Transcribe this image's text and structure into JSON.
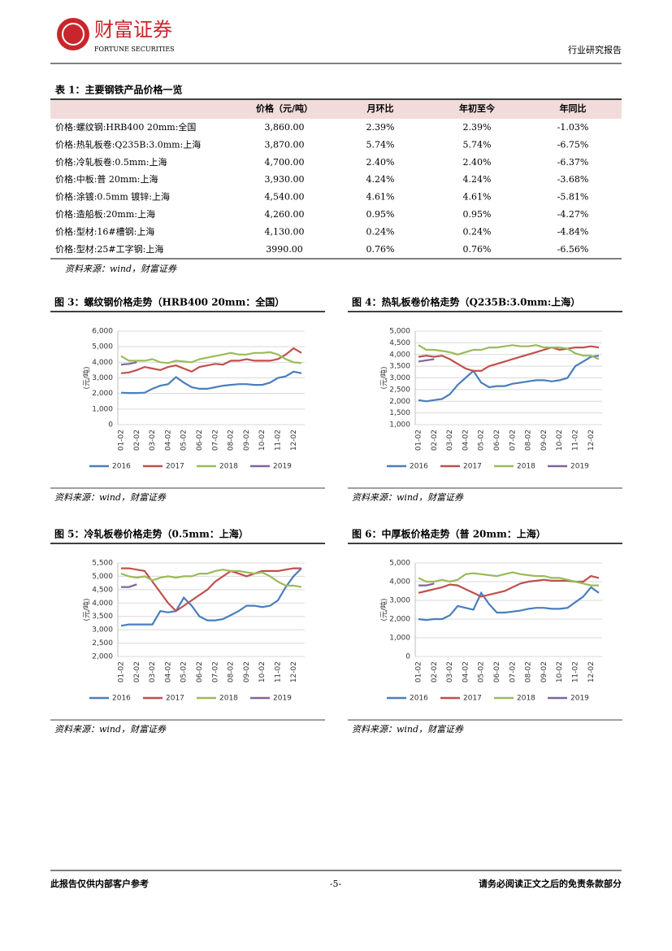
{
  "header": {
    "brand": "财富证券",
    "brand_en": "FORTUNE SECURITIES",
    "report_type": "行业研究报告"
  },
  "table": {
    "title": "表 1：主要钢铁产品价格一览",
    "header": [
      "价格（元/吨）",
      "月环比",
      "年初至今",
      "年同比"
    ],
    "rows": [
      [
        "价格:螺纹钢:HRB400 20mm:全国",
        "3,860.00",
        "2.39%",
        "2.39%",
        "-1.03%"
      ],
      [
        "价格:热轧板卷:Q235B:3.0mm:上海",
        "3,870.00",
        "5.74%",
        "5.74%",
        "-6.75%"
      ],
      [
        "价格:冷轧板卷:0.5mm:上海",
        "4,700.00",
        "2.40%",
        "2.40%",
        "-6.37%"
      ],
      [
        "价格:中板:普 20mm:上海",
        "3,930.00",
        "4.24%",
        "4.24%",
        "-3.68%"
      ],
      [
        "价格:涂镀:0.5mm 镀锌:上海",
        "4,540.00",
        "4.61%",
        "4.61%",
        "-5.81%"
      ],
      [
        "价格:造船板:20mm:上海",
        "4,260.00",
        "0.95%",
        "0.95%",
        "-4.27%"
      ],
      [
        "价格:型材:16#槽钢:上海",
        "4,130.00",
        "0.24%",
        "0.24%",
        "-4.84%"
      ],
      [
        "价格:型材:25#工字钢:上海",
        "3990.00",
        "0.76%",
        "0.76%",
        "-6.56%"
      ]
    ],
    "source": "资料来源：wind，财富证券"
  },
  "chart_data": [
    {
      "type": "line",
      "title": "图 3：螺纹钢价格走势（HRB400 20mm：全国）",
      "y_label": "(元/吨)",
      "source": "资料来源：wind，财富证券",
      "grid": true,
      "categories": [
        "01-02",
        null,
        "02-02",
        null,
        "03-02",
        null,
        "04-02",
        null,
        "05-02",
        null,
        "06-02",
        null,
        "07-02",
        null,
        "08-02",
        null,
        "09-02",
        null,
        "10-02",
        null,
        "11-02",
        null,
        "12-02",
        null
      ],
      "ylim": [
        0,
        6000
      ],
      "yticks": [
        0,
        {
          "value": 1000,
          "label": "1,000"
        },
        {
          "value": 2000,
          "label": "2,000"
        },
        {
          "value": 3000,
          "label": "3,000"
        },
        {
          "value": 4000,
          "label": "4,000"
        },
        {
          "value": 5000,
          "label": "5,000"
        },
        {
          "value": 6000,
          "label": "6,000"
        }
      ],
      "series": [
        {
          "name": "2016",
          "color": "#4a7ebb",
          "values": [
            2050,
            2030,
            2030,
            2050,
            2300,
            2500,
            2600,
            3050,
            2700,
            2400,
            2300,
            2300,
            2400,
            2500,
            2550,
            2600,
            2600,
            2550,
            2550,
            2700,
            3000,
            3100,
            3400,
            3300
          ]
        },
        {
          "name": "2017",
          "color": "#c0504d",
          "values": [
            3300,
            3350,
            3500,
            3700,
            3600,
            3500,
            3700,
            3800,
            3600,
            3400,
            3700,
            3800,
            3900,
            3850,
            4100,
            4100,
            4200,
            4100,
            4100,
            4100,
            4200,
            4500,
            4900,
            4600
          ]
        },
        {
          "name": "2018",
          "color": "#9bbb59",
          "values": [
            4400,
            4100,
            4100,
            4100,
            4200,
            4000,
            3950,
            4100,
            4050,
            4000,
            4200,
            4300,
            4400,
            4500,
            4600,
            4500,
            4500,
            4600,
            4600,
            4650,
            4500,
            4200,
            4000,
            3950
          ]
        },
        {
          "name": "2019",
          "color": "#8064a2",
          "values": [
            3850,
            3900,
            4000,
            null,
            null,
            null,
            null,
            null,
            null,
            null,
            null,
            null,
            null,
            null,
            null,
            null,
            null,
            null,
            null,
            null,
            null,
            null,
            null,
            null
          ]
        }
      ]
    },
    {
      "type": "line",
      "title": "图 4：热轧板卷价格走势（Q235B:3.0mm:上海）",
      "y_label": "(元/吨)",
      "source": "资料来源：wind，财富证券",
      "grid": true,
      "categories": [
        "01-02",
        null,
        "02-02",
        null,
        "03-02",
        null,
        "04-02",
        null,
        "05-02",
        null,
        "06-02",
        null,
        "07-02",
        null,
        "08-02",
        null,
        "09-02",
        null,
        "10-02",
        null,
        "11-02",
        null,
        "12-02",
        null
      ],
      "ylim": [
        1000,
        5000
      ],
      "yticks": [
        {
          "value": 1000,
          "label": "1,000"
        },
        {
          "value": 1500,
          "label": "1,500"
        },
        {
          "value": 2000,
          "label": "2,000"
        },
        {
          "value": 2500,
          "label": "2,500"
        },
        {
          "value": 3000,
          "label": "3,000"
        },
        {
          "value": 3500,
          "label": "3,500"
        },
        {
          "value": 4000,
          "label": "4,000"
        },
        {
          "value": 4500,
          "label": "4,500"
        },
        {
          "value": 5000,
          "label": "5,000"
        }
      ],
      "series": [
        {
          "name": "2016",
          "color": "#4a7ebb",
          "values": [
            2050,
            2000,
            2050,
            2100,
            2300,
            2700,
            3000,
            3300,
            2800,
            2600,
            2650,
            2650,
            2750,
            2800,
            2850,
            2900,
            2900,
            2850,
            2900,
            3000,
            3500,
            3700,
            3900,
            3950
          ]
        },
        {
          "name": "2017",
          "color": "#c0504d",
          "values": [
            3900,
            3950,
            3900,
            3950,
            3800,
            3600,
            3400,
            3300,
            3300,
            3500,
            3600,
            3700,
            3800,
            3900,
            4000,
            4100,
            4200,
            4300,
            4200,
            4250,
            4300,
            4300,
            4350,
            4300
          ]
        },
        {
          "name": "2018",
          "color": "#9bbb59",
          "values": [
            4400,
            4200,
            4200,
            4150,
            4100,
            4000,
            4100,
            4200,
            4200,
            4300,
            4300,
            4350,
            4400,
            4350,
            4350,
            4400,
            4300,
            4300,
            4300,
            4250,
            4050,
            3950,
            3950,
            3800
          ]
        },
        {
          "name": "2019",
          "color": "#8064a2",
          "values": [
            3700,
            3750,
            3800,
            null,
            null,
            null,
            null,
            null,
            null,
            null,
            null,
            null,
            null,
            null,
            null,
            null,
            null,
            null,
            null,
            null,
            null,
            null,
            null,
            null
          ]
        }
      ]
    },
    {
      "type": "line",
      "title": "图 5：冷轧板卷价格走势（0.5mm：上海）",
      "y_label": "(元/吨)",
      "source": "资料来源：wind，财富证券",
      "grid": true,
      "categories": [
        "01-02",
        null,
        "02-02",
        null,
        "03-02",
        null,
        "04-02",
        null,
        "05-02",
        null,
        "06-02",
        null,
        "07-02",
        null,
        "08-02",
        null,
        "09-02",
        null,
        "10-02",
        null,
        "11-02",
        null,
        "12-02",
        null
      ],
      "ylim": [
        2000,
        5500
      ],
      "yticks": [
        {
          "value": 2000,
          "label": "2,000"
        },
        {
          "value": 2500,
          "label": "2,500"
        },
        {
          "value": 3000,
          "label": "3,000"
        },
        {
          "value": 3500,
          "label": "3,500"
        },
        {
          "value": 4000,
          "label": "4,000"
        },
        {
          "value": 4500,
          "label": "4,500"
        },
        {
          "value": 5000,
          "label": "5,000"
        },
        {
          "value": 5500,
          "label": "5,500"
        }
      ],
      "series": [
        {
          "name": "2016",
          "color": "#4a7ebb",
          "values": [
            3150,
            3200,
            3200,
            3200,
            3200,
            3700,
            3650,
            3700,
            4200,
            3900,
            3500,
            3350,
            3350,
            3400,
            3550,
            3700,
            3900,
            3900,
            3850,
            3900,
            4100,
            4600,
            5000,
            5300
          ]
        },
        {
          "name": "2017",
          "color": "#c0504d",
          "values": [
            5300,
            5300,
            5250,
            5200,
            4800,
            4400,
            4000,
            3700,
            3900,
            4100,
            4300,
            4500,
            4800,
            5000,
            5200,
            5100,
            5000,
            5100,
            5200,
            5200,
            5200,
            5250,
            5300,
            5300
          ]
        },
        {
          "name": "2018",
          "color": "#9bbb59",
          "values": [
            5100,
            5000,
            4950,
            5000,
            4850,
            4950,
            5000,
            4950,
            5000,
            5000,
            5100,
            5100,
            5200,
            5250,
            5200,
            5200,
            5150,
            5100,
            5150,
            5000,
            4800,
            4650,
            4650,
            4600
          ]
        },
        {
          "name": "2019",
          "color": "#8064a2",
          "values": [
            4600,
            4600,
            4700,
            null,
            null,
            null,
            null,
            null,
            null,
            null,
            null,
            null,
            null,
            null,
            null,
            null,
            null,
            null,
            null,
            null,
            null,
            null,
            null,
            null
          ]
        }
      ]
    },
    {
      "type": "line",
      "title": "图 6：中厚板价格走势（普 20mm：上海）",
      "y_label": "(元/吨)",
      "source": "资料来源：wind，财富证券",
      "grid": true,
      "categories": [
        "01-02",
        null,
        "02-02",
        null,
        "03-02",
        null,
        "04-02",
        null,
        "05-02",
        null,
        "06-02",
        null,
        "07-02",
        null,
        "08-02",
        null,
        "09-02",
        null,
        "10-02",
        null,
        "11-02",
        null,
        "12-02",
        null
      ],
      "ylim": [
        0,
        5000
      ],
      "yticks": [
        0,
        {
          "value": 1000,
          "label": "1,000"
        },
        {
          "value": 2000,
          "label": "2,000"
        },
        {
          "value": 3000,
          "label": "3,000"
        },
        {
          "value": 4000,
          "label": "4,000"
        },
        {
          "value": 5000,
          "label": "5,000"
        }
      ],
      "series": [
        {
          "name": "2016",
          "color": "#4a7ebb",
          "values": [
            2000,
            1950,
            2000,
            2000,
            2200,
            2700,
            2600,
            2500,
            3400,
            2800,
            2350,
            2350,
            2400,
            2450,
            2550,
            2600,
            2600,
            2550,
            2550,
            2600,
            2900,
            3200,
            3700,
            3400
          ]
        },
        {
          "name": "2017",
          "color": "#c0504d",
          "values": [
            3400,
            3500,
            3600,
            3700,
            3850,
            3800,
            3600,
            3400,
            3200,
            3300,
            3400,
            3500,
            3700,
            3900,
            4000,
            4050,
            4100,
            4050,
            4050,
            4050,
            4000,
            4000,
            4300,
            4200
          ]
        },
        {
          "name": "2018",
          "color": "#9bbb59",
          "values": [
            4200,
            4000,
            4000,
            4100,
            4000,
            4100,
            4400,
            4450,
            4400,
            4350,
            4300,
            4400,
            4500,
            4400,
            4350,
            4300,
            4300,
            4200,
            4200,
            4100,
            4000,
            3900,
            3800,
            3800
          ]
        },
        {
          "name": "2019",
          "color": "#8064a2",
          "values": [
            3800,
            3800,
            3900,
            null,
            null,
            null,
            null,
            null,
            null,
            null,
            null,
            null,
            null,
            null,
            null,
            null,
            null,
            null,
            null,
            null,
            null,
            null,
            null,
            null
          ]
        }
      ]
    }
  ],
  "footer": {
    "left": "此报告仅供内部客户参考",
    "page": "-5-",
    "right": "请务必阅读正文之后的免责条款部分"
  }
}
